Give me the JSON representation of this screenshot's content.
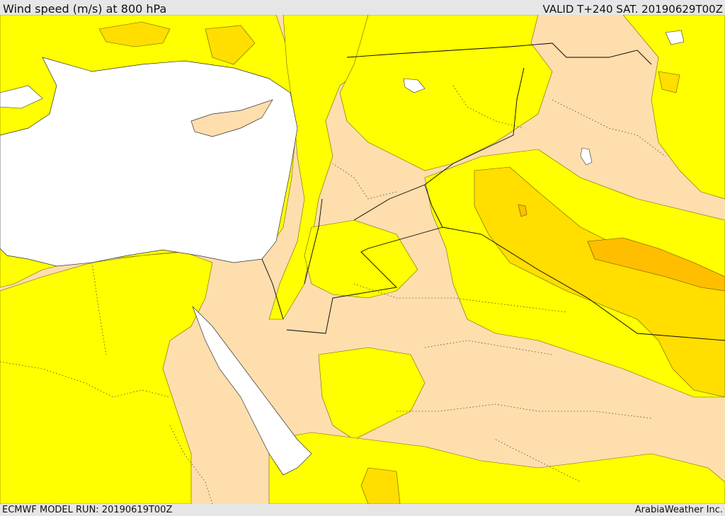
{
  "header": {
    "title": "Wind speed (m/s) at 800 hPa",
    "valid": "VALID T+240 SAT. 20190629T00Z"
  },
  "footer": {
    "model_run": "ECMWF MODEL RUN: 20190619T00Z",
    "credit": "ArabiaWeather Inc."
  },
  "colors": {
    "land_low": "#ffdead",
    "band_yellow": "#ffff00",
    "band_gold": "#ffde00",
    "band_orange": "#ffbe00",
    "sea": "#ffffff",
    "frame": "#e6e6e6"
  }
}
